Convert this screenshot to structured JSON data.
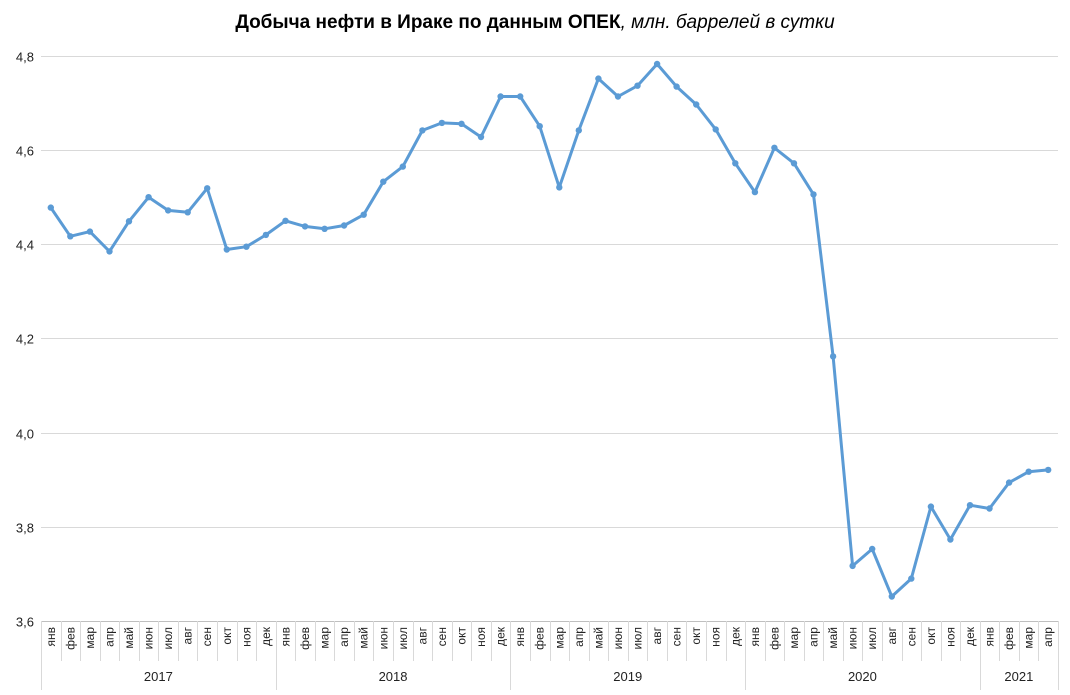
{
  "chart_data": {
    "type": "line",
    "title": "Добыча нефти в Ираке по данным ОПЕК",
    "title_unit": ", млн. баррелей в сутки",
    "ylim": [
      3.6,
      4.8
    ],
    "yticks": [
      "3,6",
      "3,8",
      "4,0",
      "4,2",
      "4,4",
      "4,6",
      "4,8"
    ],
    "ytick_values": [
      3.6,
      3.8,
      4.0,
      4.2,
      4.4,
      4.6,
      4.8
    ],
    "grid": true,
    "legend": "none",
    "line_color": "#5B9BD5",
    "years": [
      {
        "label": "2017",
        "months": 12
      },
      {
        "label": "2018",
        "months": 12
      },
      {
        "label": "2019",
        "months": 12
      },
      {
        "label": "2020",
        "months": 12
      },
      {
        "label": "2021",
        "months": 4
      }
    ],
    "categories": [
      "янв",
      "фев",
      "мар",
      "апр",
      "май",
      "июн",
      "июл",
      "авг",
      "сен",
      "окт",
      "ноя",
      "дек",
      "янв",
      "фев",
      "мар",
      "апр",
      "май",
      "июн",
      "июл",
      "авг",
      "сен",
      "окт",
      "ноя",
      "дек",
      "янв",
      "фев",
      "мар",
      "апр",
      "май",
      "июн",
      "июл",
      "авг",
      "сен",
      "окт",
      "ноя",
      "дек",
      "янв",
      "фев",
      "мар",
      "апр",
      "май",
      "июн",
      "июл",
      "авг",
      "сен",
      "окт",
      "ноя",
      "дек",
      "янв",
      "фев",
      "мар",
      "апр"
    ],
    "values": [
      4.478,
      4.417,
      4.427,
      4.385,
      4.449,
      4.5,
      4.472,
      4.468,
      4.519,
      4.389,
      4.395,
      4.42,
      4.45,
      4.438,
      4.433,
      4.44,
      4.463,
      4.533,
      4.565,
      4.642,
      4.658,
      4.656,
      4.628,
      4.714,
      4.714,
      4.651,
      4.521,
      4.642,
      4.752,
      4.714,
      4.737,
      4.783,
      4.735,
      4.697,
      4.644,
      4.572,
      4.511,
      4.605,
      4.572,
      4.506,
      4.162,
      3.717,
      3.753,
      3.652,
      3.69,
      3.843,
      3.773,
      3.846,
      3.839,
      3.894,
      3.917,
      3.921
    ]
  }
}
